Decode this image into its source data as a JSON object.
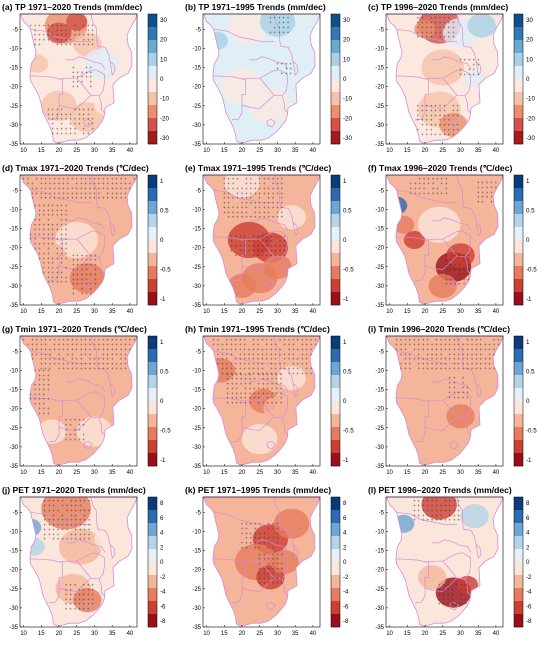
{
  "panels": [
    {
      "tag": "(a)",
      "title": "TP 1971–2020 Trends (mm/dec)",
      "var": "TP",
      "scheme": "pr",
      "cb_ticks": [
        "30",
        "20",
        "10",
        "0",
        "-10",
        "-20",
        "-30"
      ],
      "pattern": "a"
    },
    {
      "tag": "(b)",
      "title": "TP 1971–1995 Trends (mm/dec)",
      "var": "TP",
      "scheme": "pr",
      "cb_ticks": [
        "30",
        "20",
        "10",
        "0",
        "-10",
        "-20",
        "-30"
      ],
      "pattern": "b"
    },
    {
      "tag": "(c)",
      "title": "TP 1996–2020 Trends (mm/dec)",
      "var": "TP",
      "scheme": "pr",
      "cb_ticks": [
        "30",
        "20",
        "10",
        "0",
        "-10",
        "-20",
        "-30"
      ],
      "pattern": "c"
    },
    {
      "tag": "(d)",
      "title": "Tmax 1971–2020 Trends (℃/dec)",
      "var": "Tmax",
      "scheme": "temp",
      "cb_ticks": [
        "1",
        "0.5",
        "0",
        "-0.5",
        "-1"
      ],
      "pattern": "d"
    },
    {
      "tag": "(e)",
      "title": "Tmax 1971–1995 Trends (℃/dec)",
      "var": "Tmax",
      "scheme": "temp",
      "cb_ticks": [
        "1",
        "0.5",
        "0",
        "-0.5",
        "-1"
      ],
      "pattern": "e"
    },
    {
      "tag": "(f)",
      "title": "Tmax 1996–2020 Trends (℃/dec)",
      "var": "Tmax",
      "scheme": "temp",
      "cb_ticks": [
        "1",
        "0.5",
        "0",
        "-0.5",
        "-1"
      ],
      "pattern": "f"
    },
    {
      "tag": "(g)",
      "title": "Tmin 1971–2020 Trends (℃/dec)",
      "var": "Tmin",
      "scheme": "temp",
      "cb_ticks": [
        "1",
        "0.5",
        "0",
        "-0.5",
        "-1"
      ],
      "pattern": "g"
    },
    {
      "tag": "(h)",
      "title": "Tmin 1971–1995 Trends (℃/dec)",
      "var": "Tmin",
      "scheme": "temp",
      "cb_ticks": [
        "1",
        "0.5",
        "0",
        "-0.5",
        "-1"
      ],
      "pattern": "h"
    },
    {
      "tag": "(i)",
      "title": "Tmin 1996–2020 Trends (℃/dec)",
      "var": "Tmin",
      "scheme": "temp",
      "cb_ticks": [
        "1",
        "0.5",
        "0",
        "-0.5",
        "-1"
      ],
      "pattern": "i"
    },
    {
      "tag": "(j)",
      "title": "PET 1971–2020 Trends (mm/dec)",
      "var": "PET",
      "scheme": "temp",
      "cb_ticks": [
        "8",
        "6",
        "4",
        "2",
        "0",
        "-2",
        "-4",
        "-6",
        "-8"
      ],
      "pattern": "j"
    },
    {
      "tag": "(k)",
      "title": "PET 1971–1995 Trends (mm/dec)",
      "var": "PET",
      "scheme": "temp",
      "cb_ticks": [
        "8",
        "6",
        "4",
        "2",
        "0",
        "-2",
        "-4",
        "-6",
        "-8"
      ],
      "pattern": "k"
    },
    {
      "tag": "(l)",
      "title": "PET 1996–2020 Trends (mm/dec)",
      "var": "PET",
      "scheme": "temp",
      "cb_ticks": [
        "8",
        "6",
        "4",
        "2",
        "0",
        "-2",
        "-4",
        "-6",
        "-8"
      ],
      "pattern": "l"
    }
  ],
  "x_ticks": [
    "10",
    "15",
    "20",
    "25",
    "30",
    "35",
    "40"
  ],
  "y_ticks": [
    "-5",
    "-10",
    "-15",
    "-20",
    "-25",
    "-30",
    "-35"
  ],
  "colors": {
    "border": "#d88ad8",
    "stipple": "#333333",
    "frame": "#000000",
    "pr_colormap": [
      "#0f4f8a",
      "#2f7ab4",
      "#6aa9d0",
      "#a8d0e6",
      "#e0eef6",
      "#fbe9e0",
      "#f6c2a9",
      "#ea8e6c",
      "#d1534a",
      "#a11b1f"
    ],
    "temp_colormap": [
      "#0b3c7a",
      "#2b6cb0",
      "#6ea5d3",
      "#b4d4ea",
      "#e8f0f7",
      "#fbe6dc",
      "#f5b59b",
      "#e57c5e",
      "#cc3f34",
      "#9a0f1a"
    ]
  }
}
